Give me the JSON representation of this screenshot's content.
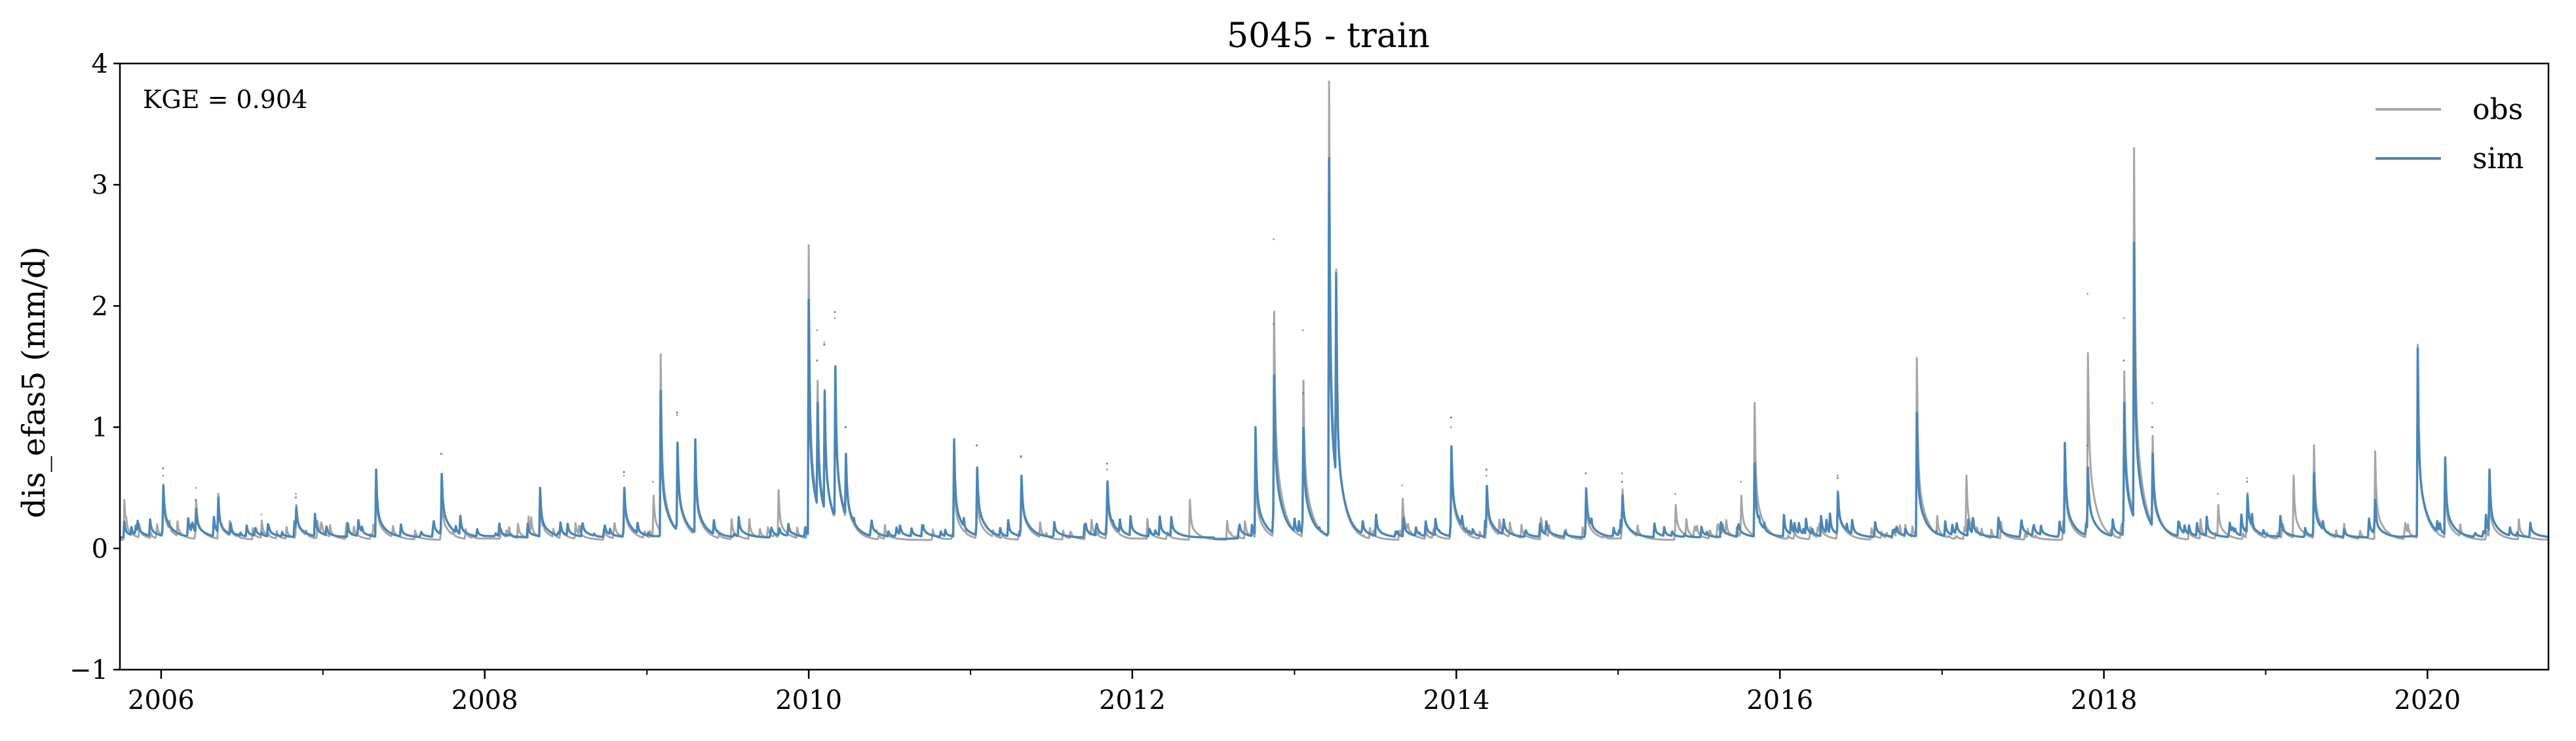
{
  "chart_data": {
    "type": "line",
    "title": "5045 - train",
    "xlabel": "",
    "ylabel": "dis_efas5 (mm/d)",
    "xlim": [
      "2005-09-30",
      "2020-09-30"
    ],
    "ylim": [
      -1,
      4
    ],
    "x_ticks": [
      "2006",
      "2008",
      "2010",
      "2012",
      "2014",
      "2016",
      "2018",
      "2020"
    ],
    "y_ticks": [
      "−1",
      "0",
      "1",
      "2",
      "3",
      "4"
    ],
    "baseflow": {
      "obs": 0.07,
      "sim": 0.09
    },
    "annotation": "KGE = 0.904",
    "legend": {
      "position": "top-right",
      "entries": [
        "obs",
        "sim"
      ]
    },
    "grid": false,
    "colors": {
      "obs": "#a6a6a6",
      "sim": "#4a86b8"
    },
    "series": [
      {
        "name": "obs",
        "points": [
          [
            "2005-10-10",
            0.4
          ],
          [
            "2006-01-05",
            0.6
          ],
          [
            "2006-03-20",
            0.5
          ],
          [
            "2006-05-10",
            0.45
          ],
          [
            "2006-08-15",
            0.28
          ],
          [
            "2006-11-01",
            0.45
          ],
          [
            "2007-05-01",
            0.58
          ],
          [
            "2007-09-25",
            0.55
          ],
          [
            "2008-05-05",
            0.42
          ],
          [
            "2008-11-10",
            0.6
          ],
          [
            "2009-01-15",
            0.55
          ],
          [
            "2009-02-01",
            1.6
          ],
          [
            "2009-03-10",
            1.1
          ],
          [
            "2009-04-20",
            0.85
          ],
          [
            "2009-10-25",
            0.48
          ],
          [
            "2010-01-01",
            2.5
          ],
          [
            "2010-01-20",
            1.8
          ],
          [
            "2010-02-05",
            1.7
          ],
          [
            "2010-03-01",
            1.9
          ],
          [
            "2010-03-25",
            1.0
          ],
          [
            "2010-11-25",
            0.7
          ],
          [
            "2011-01-15",
            0.62
          ],
          [
            "2011-04-25",
            0.75
          ],
          [
            "2011-11-05",
            0.65
          ],
          [
            "2012-05-10",
            0.4
          ],
          [
            "2012-10-05",
            0.8
          ],
          [
            "2012-11-15",
            2.55
          ],
          [
            "2013-01-20",
            1.8
          ],
          [
            "2013-03-20",
            3.85
          ],
          [
            "2013-04-05",
            2.3
          ],
          [
            "2013-09-01",
            0.52
          ],
          [
            "2013-12-20",
            1.0
          ],
          [
            "2014-03-10",
            0.6
          ],
          [
            "2014-10-20",
            0.5
          ],
          [
            "2015-01-10",
            0.62
          ],
          [
            "2015-05-10",
            0.45
          ],
          [
            "2015-10-05",
            0.55
          ],
          [
            "2015-11-05",
            1.2
          ],
          [
            "2016-05-10",
            0.6
          ],
          [
            "2016-11-05",
            1.57
          ],
          [
            "2017-02-25",
            0.6
          ],
          [
            "2017-10-05",
            0.8
          ],
          [
            "2017-11-25",
            2.1
          ],
          [
            "2018-02-15",
            1.9
          ],
          [
            "2018-03-10",
            3.3
          ],
          [
            "2018-04-20",
            1.2
          ],
          [
            "2018-09-15",
            0.45
          ],
          [
            "2018-11-20",
            0.58
          ],
          [
            "2019-03-05",
            0.6
          ],
          [
            "2019-04-20",
            0.85
          ],
          [
            "2019-09-05",
            0.8
          ],
          [
            "2019-12-10",
            1.68
          ],
          [
            "2020-02-10",
            0.6
          ],
          [
            "2020-05-20",
            0.5
          ]
        ]
      },
      {
        "name": "sim",
        "points": [
          [
            "2005-10-10",
            0.22
          ],
          [
            "2006-01-05",
            0.66
          ],
          [
            "2006-03-20",
            0.4
          ],
          [
            "2006-05-10",
            0.42
          ],
          [
            "2006-11-01",
            0.42
          ],
          [
            "2007-05-01",
            0.65
          ],
          [
            "2007-09-25",
            0.78
          ],
          [
            "2008-05-05",
            0.5
          ],
          [
            "2008-11-10",
            0.63
          ],
          [
            "2009-02-01",
            1.3
          ],
          [
            "2009-03-10",
            1.12
          ],
          [
            "2009-04-20",
            0.9
          ],
          [
            "2010-01-01",
            2.05
          ],
          [
            "2010-01-20",
            1.55
          ],
          [
            "2010-02-05",
            1.68
          ],
          [
            "2010-03-01",
            1.95
          ],
          [
            "2010-03-25",
            1.0
          ],
          [
            "2010-11-25",
            0.9
          ],
          [
            "2011-01-15",
            0.85
          ],
          [
            "2011-04-25",
            0.76
          ],
          [
            "2011-11-05",
            0.7
          ],
          [
            "2012-10-05",
            1.0
          ],
          [
            "2012-11-15",
            1.85
          ],
          [
            "2013-01-20",
            1.28
          ],
          [
            "2013-03-20",
            3.22
          ],
          [
            "2013-04-05",
            2.27
          ],
          [
            "2013-12-20",
            1.08
          ],
          [
            "2014-03-10",
            0.65
          ],
          [
            "2014-10-20",
            0.62
          ],
          [
            "2015-01-10",
            0.55
          ],
          [
            "2015-11-05",
            0.7
          ],
          [
            "2016-05-10",
            0.58
          ],
          [
            "2016-11-05",
            1.12
          ],
          [
            "2017-10-05",
            0.87
          ],
          [
            "2017-11-25",
            0.85
          ],
          [
            "2018-02-15",
            1.55
          ],
          [
            "2018-03-10",
            2.52
          ],
          [
            "2018-04-20",
            1.0
          ],
          [
            "2018-11-20",
            0.55
          ],
          [
            "2019-04-20",
            0.62
          ],
          [
            "2019-09-05",
            0.4
          ],
          [
            "2019-12-10",
            1.65
          ],
          [
            "2020-02-10",
            0.75
          ],
          [
            "2020-05-20",
            0.65
          ]
        ]
      }
    ]
  }
}
